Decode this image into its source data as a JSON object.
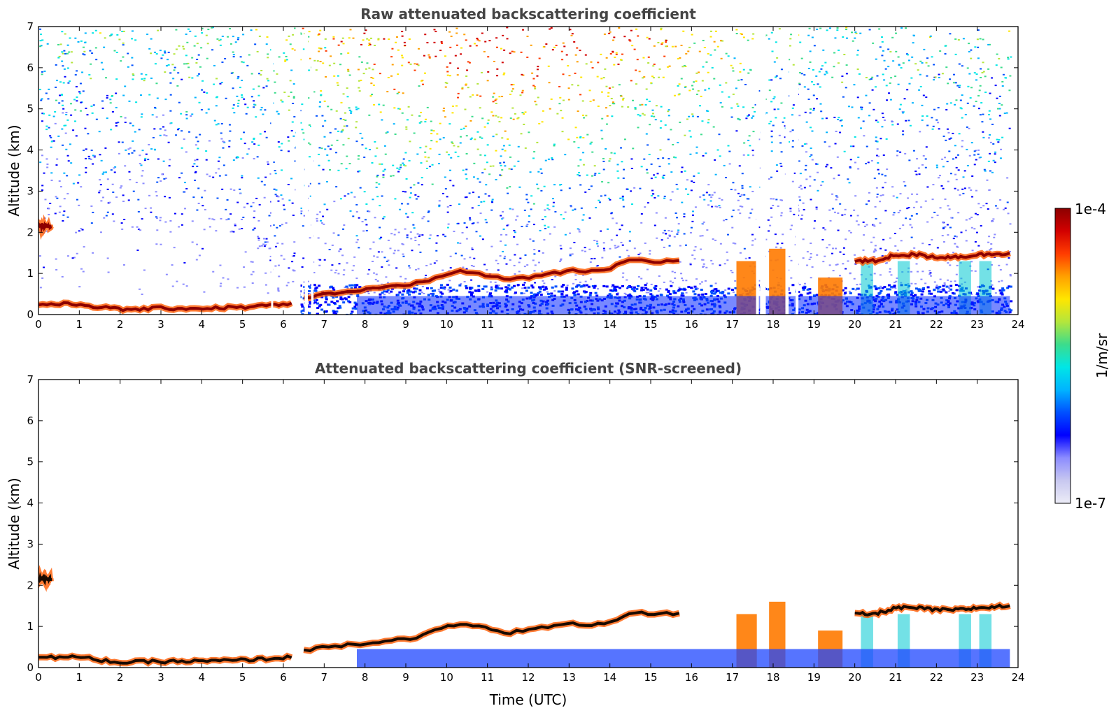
{
  "chart_data": [
    {
      "type": "heatmap",
      "title": "Raw attenuated backscattering coefficient",
      "xlabel": "",
      "ylabel": "Altitude (km)",
      "xlim": [
        0,
        24
      ],
      "ylim": [
        0,
        7
      ],
      "x_ticks": [
        0,
        1,
        2,
        3,
        4,
        5,
        6,
        7,
        8,
        9,
        10,
        11,
        12,
        13,
        14,
        15,
        16,
        17,
        18,
        19,
        20,
        21,
        22,
        23,
        24
      ],
      "y_ticks": [
        0,
        1,
        2,
        3,
        4,
        5,
        6,
        7
      ],
      "data_gaps_utc": [
        [
          5.7,
          5.75
        ],
        [
          6.3,
          6.42
        ],
        [
          6.52,
          6.6
        ],
        [
          6.68,
          6.74
        ],
        [
          17.58,
          17.65
        ],
        [
          17.68,
          17.82
        ],
        [
          18.3,
          18.38
        ],
        [
          18.55,
          18.62
        ]
      ],
      "layers": [
        {
          "x": [
            0,
            1,
            2,
            3,
            4,
            5,
            6.2
          ],
          "y": [
            0.25,
            0.25,
            0.12,
            0.15,
            0.15,
            0.18,
            0.25
          ]
        },
        {
          "x": [
            0,
            0.3
          ],
          "y": [
            2.15,
            2.15
          ]
        },
        {
          "x": [
            6.5,
            7,
            7.5,
            8,
            8.5,
            9,
            9.5,
            10,
            10.5,
            11,
            11.5,
            12,
            12.5,
            13,
            13.5,
            14,
            14.5,
            15,
            15.7
          ],
          "y": [
            0.4,
            0.5,
            0.55,
            0.6,
            0.65,
            0.7,
            0.8,
            1.0,
            1.05,
            0.95,
            0.85,
            0.9,
            1.0,
            1.05,
            1.05,
            1.1,
            1.35,
            1.3,
            1.3
          ]
        },
        {
          "x": [
            20,
            20.5,
            21,
            21.5,
            22,
            22.5,
            23,
            23.8
          ],
          "y": [
            1.3,
            1.3,
            1.45,
            1.45,
            1.4,
            1.4,
            1.45,
            1.5
          ]
        }
      ],
      "grid": false
    },
    {
      "type": "heatmap",
      "title": "Attenuated backscattering coefficient (SNR-screened)",
      "xlabel": "Time (UTC)",
      "ylabel": "Altitude (km)",
      "xlim": [
        0,
        24
      ],
      "ylim": [
        0,
        7
      ],
      "x_ticks": [
        0,
        1,
        2,
        3,
        4,
        5,
        6,
        7,
        8,
        9,
        10,
        11,
        12,
        13,
        14,
        15,
        16,
        17,
        18,
        19,
        20,
        21,
        22,
        23,
        24
      ],
      "y_ticks": [
        0,
        1,
        2,
        3,
        4,
        5,
        6,
        7
      ],
      "grid": false
    }
  ],
  "colorbar": {
    "min_label": "1e-7",
    "max_label": "1e-4",
    "label": "1/m/sr",
    "scale": "log",
    "colors": [
      "#ececf7",
      "#c8c8f0",
      "#8c8cff",
      "#0000ff",
      "#0050ff",
      "#00b4ff",
      "#00e6e6",
      "#3cdc8c",
      "#b4e63c",
      "#ffe600",
      "#ffa000",
      "#ff3c00",
      "#d20000",
      "#8c0000"
    ]
  }
}
